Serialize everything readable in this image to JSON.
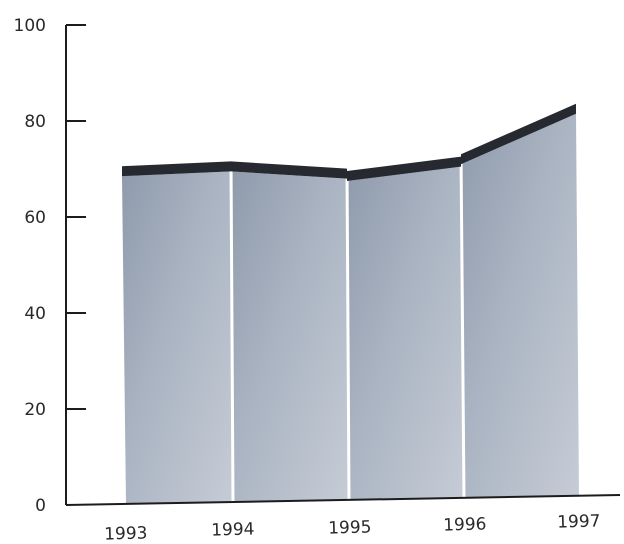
{
  "chart_data": {
    "type": "area",
    "title": "",
    "xlabel": "",
    "ylabel": "",
    "categories": [
      "1993",
      "1994",
      "1995",
      "1996",
      "1997"
    ],
    "series": [
      {
        "values": [
          [
            68.5,
            69.5
          ],
          [
            69.5,
            68.0
          ],
          [
            67.5,
            70.5
          ],
          [
            71.0,
            81.5
          ]
        ]
      }
    ],
    "ylim": [
      0,
      100
    ],
    "yticks": [
      "0",
      "20",
      "40",
      "60",
      "80",
      "100"
    ],
    "xticks": [
      "1993",
      "1994",
      "1995",
      "1996",
      "1997"
    ],
    "grid": false,
    "legend": "none",
    "colors": {
      "area_fill": "#a9b3c1",
      "top_band": "#262a30",
      "axis": "#1c1c1c",
      "divider": "#ffffff"
    }
  }
}
